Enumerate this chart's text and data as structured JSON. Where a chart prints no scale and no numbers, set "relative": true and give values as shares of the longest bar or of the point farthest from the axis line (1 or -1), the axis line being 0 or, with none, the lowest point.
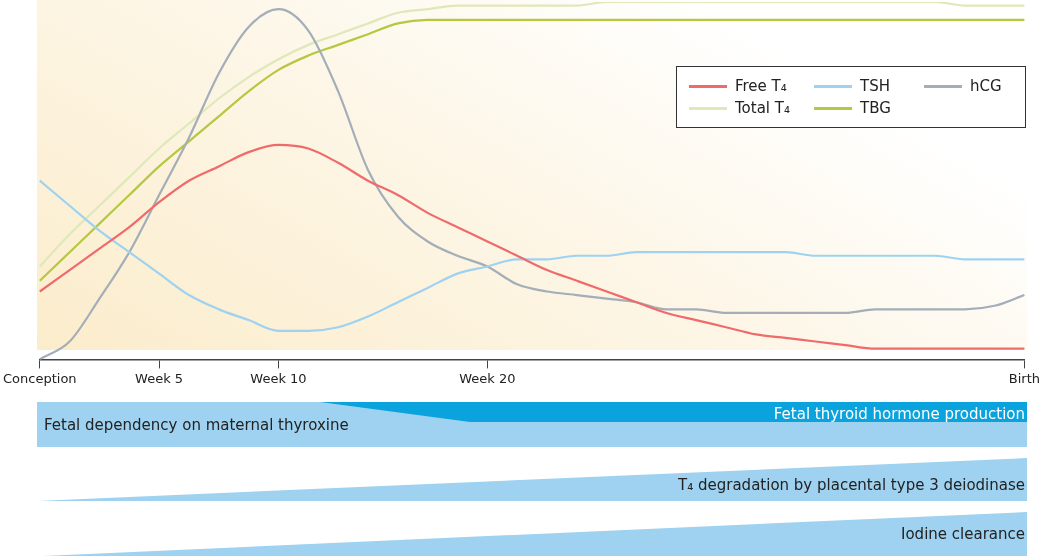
{
  "chart_data": {
    "type": "line",
    "relative": true,
    "categories": [
      "Conception",
      null,
      null,
      null,
      "Week 5",
      null,
      null,
      null,
      "Week 10",
      null,
      null,
      null,
      null,
      null,
      null,
      "Week 20",
      null,
      null,
      null,
      null,
      null,
      null,
      null,
      null,
      null,
      null,
      null,
      null,
      null,
      null,
      null,
      null,
      null,
      "Birth"
    ],
    "tick_labels": "x",
    "grid": false,
    "legend": "top right",
    "marker": "none",
    "line_style": "solid",
    "series": [
      {
        "name": "Free T₄",
        "color": "#ef6b6b",
        "values": [
          0.19,
          0.25,
          0.31,
          0.37,
          0.44,
          0.5,
          0.54,
          0.58,
          0.6,
          0.59,
          0.55,
          0.5,
          0.46,
          0.41,
          0.37,
          0.33,
          0.29,
          0.25,
          0.22,
          0.19,
          0.16,
          0.13,
          0.11,
          0.09,
          0.07,
          0.06,
          0.05,
          0.04,
          0.03,
          0.03,
          0.03,
          0.03,
          0.03,
          0.03
        ]
      },
      {
        "name": "TSH",
        "color": "#9fd2f0",
        "values": [
          0.5,
          0.43,
          0.36,
          0.3,
          0.24,
          0.18,
          0.14,
          0.11,
          0.08,
          0.08,
          0.09,
          0.12,
          0.16,
          0.2,
          0.24,
          0.26,
          0.28,
          0.28,
          0.29,
          0.29,
          0.3,
          0.3,
          0.3,
          0.3,
          0.3,
          0.3,
          0.29,
          0.29,
          0.29,
          0.29,
          0.29,
          0.28,
          0.28,
          0.28
        ]
      },
      {
        "name": "hCG",
        "color": "#a3aeb8",
        "values": [
          0,
          0.05,
          0.17,
          0.3,
          0.46,
          0.62,
          0.8,
          0.93,
          0.98,
          0.92,
          0.75,
          0.53,
          0.4,
          0.33,
          0.29,
          0.26,
          0.21,
          0.19,
          0.18,
          0.17,
          0.16,
          0.14,
          0.14,
          0.13,
          0.13,
          0.13,
          0.13,
          0.13,
          0.14,
          0.14,
          0.14,
          0.14,
          0.15,
          0.18
        ]
      },
      {
        "name": "Total T₄",
        "color": "#dfe8b8",
        "values": [
          0.26,
          0.35,
          0.43,
          0.51,
          0.59,
          0.66,
          0.73,
          0.79,
          0.84,
          0.88,
          0.91,
          0.94,
          0.97,
          0.98,
          0.99,
          0.99,
          0.99,
          0.99,
          0.99,
          1,
          1,
          1,
          1,
          1,
          1,
          1,
          1,
          1,
          1,
          1,
          1,
          0.99,
          0.99,
          0.99
        ]
      },
      {
        "name": "TBG",
        "color": "#b5c840",
        "values": [
          0.22,
          0.3,
          0.38,
          0.46,
          0.54,
          0.61,
          0.68,
          0.75,
          0.81,
          0.85,
          0.88,
          0.91,
          0.94,
          0.95,
          0.95,
          0.95,
          0.95,
          0.95,
          0.95,
          0.95,
          0.95,
          0.95,
          0.95,
          0.95,
          0.95,
          0.95,
          0.95,
          0.95,
          0.95,
          0.95,
          0.95,
          0.95,
          0.95,
          0.95
        ]
      }
    ],
    "annotations": [
      "Fetal dependency on maternal thyroxine",
      "Fetal thyroid hormone production",
      "T₄ degradation by placental type 3 deiodinase",
      "Iodine clearance"
    ]
  }
}
